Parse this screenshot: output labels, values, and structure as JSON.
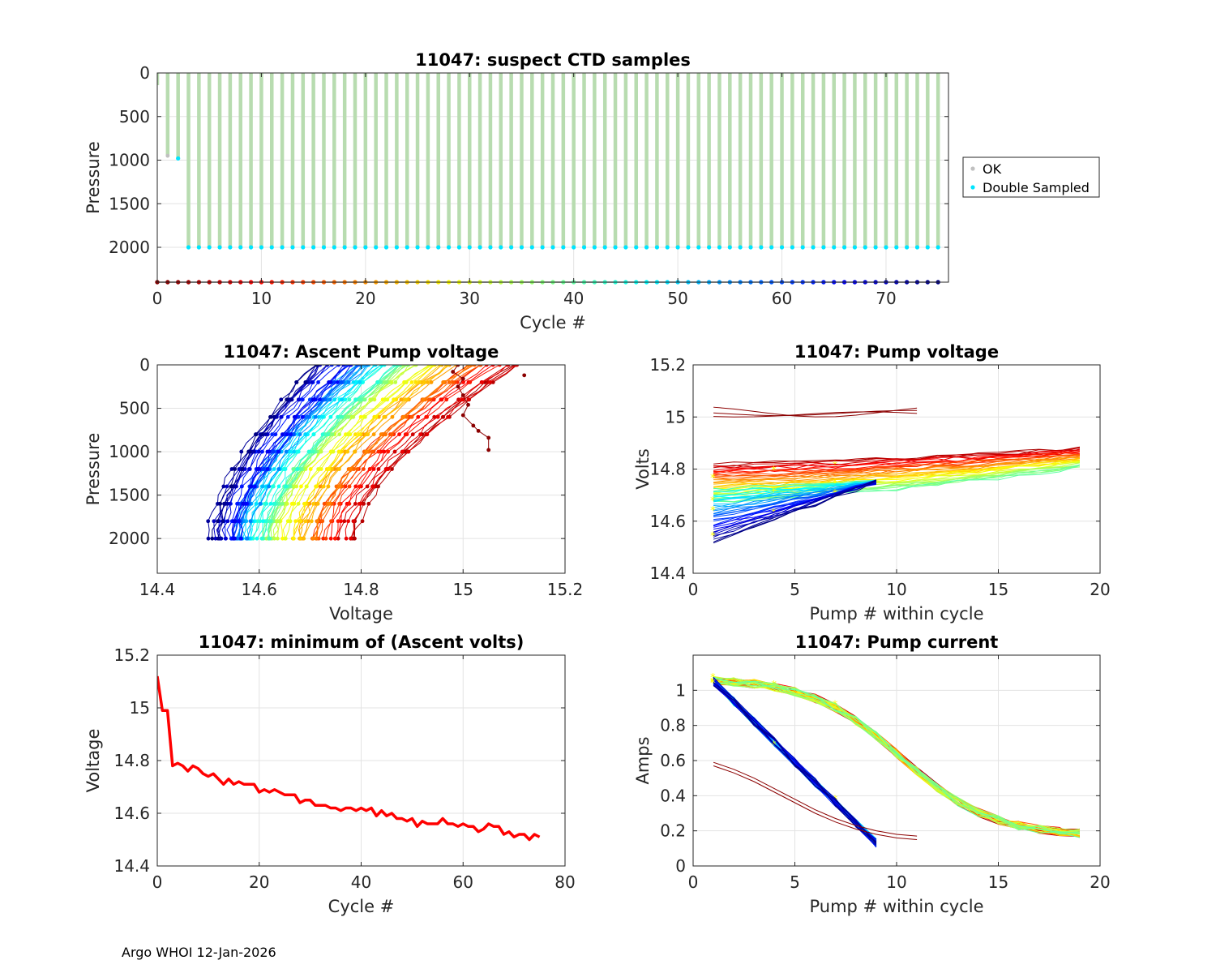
{
  "footer": "Argo WHOI 12-Jan-2026",
  "chart_data": [
    {
      "id": "suspect",
      "type": "scatter",
      "title": "11047: suspect CTD samples",
      "xlabel": "Cycle #",
      "ylabel": "Pressure",
      "xlim": [
        0,
        76
      ],
      "ylim": [
        0,
        2400
      ],
      "y_reversed": true,
      "xticks": [
        0,
        10,
        20,
        30,
        40,
        50,
        60,
        70
      ],
      "yticks": [
        0,
        500,
        1000,
        1500,
        2000
      ],
      "grid": true,
      "legend": {
        "position": "outside-right",
        "entries": [
          {
            "label": "OK",
            "color": "#c0c0c0"
          },
          {
            "label": "Double Sampled",
            "color": "#00e5ff"
          }
        ]
      },
      "profiles": [
        {
          "cycle": 0,
          "max_pressure": 140
        },
        {
          "cycle": 1,
          "max_pressure": 950
        },
        {
          "cycle": 2,
          "max_pressure": 980
        },
        {
          "cycle_range": [
            3,
            75
          ],
          "max_pressure": 2000
        }
      ],
      "double_sampled_pressure": 2000,
      "double_sampled_cycles_from": 3,
      "cycle_marker_pressure": 2400,
      "sample_color": "#b8dcb0"
    },
    {
      "id": "ascent",
      "type": "line",
      "title": "11047: Ascent Pump voltage",
      "xlabel": "Voltage",
      "ylabel": "Pressure",
      "xlim": [
        14.4,
        15.2
      ],
      "ylim": [
        0,
        2400
      ],
      "y_reversed": true,
      "xticks": [
        14.4,
        14.6,
        14.8,
        15,
        15.2
      ],
      "ytick_values": [
        0,
        500,
        1000,
        1500,
        2000
      ],
      "grid": true,
      "n_cycles": 76,
      "pressure_levels": [
        0,
        100,
        200,
        300,
        400,
        500,
        600,
        700,
        800,
        900,
        1000,
        1100,
        1200,
        1300,
        1400,
        1500,
        1600,
        1700,
        1800,
        1900,
        2000
      ],
      "early_profile": {
        "voltages": [
          14.99,
          14.98,
          15.0,
          14.99,
          15.0,
          15.01,
          15.0,
          15.02,
          15.03,
          15.05,
          15.05
        ],
        "pressures": [
          0,
          80,
          160,
          250,
          350,
          460,
          580,
          700,
          760,
          840,
          980
        ]
      },
      "outlier_point": {
        "voltage": 15.12,
        "pressure": 120
      }
    },
    {
      "id": "pumpv",
      "type": "line",
      "title": "11047: Pump voltage",
      "xlabel": "Pump # within cycle",
      "ylabel": "Volts",
      "xlim": [
        0,
        20
      ],
      "ylim": [
        14.4,
        15.2
      ],
      "xticks": [
        0,
        5,
        10,
        15,
        20
      ],
      "yticks": [
        14.4,
        14.6,
        14.8,
        15,
        15.2
      ],
      "grid": true,
      "early_level": 15.02,
      "early_pumps": 11
    },
    {
      "id": "minvolt",
      "type": "line",
      "title": "11047: minimum of (Ascent volts)",
      "xlabel": "Cycle #",
      "ylabel": "Voltage",
      "xlim": [
        0,
        80
      ],
      "ylim": [
        14.4,
        15.2
      ],
      "xticks": [
        0,
        20,
        40,
        60,
        80
      ],
      "yticks": [
        14.4,
        14.6,
        14.8,
        15,
        15.2
      ],
      "grid": true,
      "line_color": "#ff0000",
      "x": [
        0,
        1,
        2,
        3,
        4,
        5,
        6,
        7,
        8,
        9,
        10,
        11,
        12,
        13,
        14,
        15,
        16,
        17,
        18,
        19,
        20,
        21,
        22,
        23,
        24,
        25,
        26,
        27,
        28,
        29,
        30,
        31,
        32,
        33,
        34,
        35,
        36,
        37,
        38,
        39,
        40,
        41,
        42,
        43,
        44,
        45,
        46,
        47,
        48,
        49,
        50,
        51,
        52,
        53,
        54,
        55,
        56,
        57,
        58,
        59,
        60,
        61,
        62,
        63,
        64,
        65,
        66,
        67,
        68,
        69,
        70,
        71,
        72,
        73,
        74,
        75
      ],
      "y": [
        15.12,
        14.99,
        14.99,
        14.78,
        14.79,
        14.78,
        14.76,
        14.78,
        14.77,
        14.75,
        14.74,
        14.75,
        14.73,
        14.71,
        14.73,
        14.71,
        14.72,
        14.71,
        14.71,
        14.71,
        14.68,
        14.69,
        14.68,
        14.69,
        14.68,
        14.67,
        14.67,
        14.67,
        14.64,
        14.65,
        14.65,
        14.63,
        14.63,
        14.63,
        14.62,
        14.62,
        14.61,
        14.62,
        14.62,
        14.61,
        14.62,
        14.61,
        14.62,
        14.59,
        14.61,
        14.59,
        14.6,
        14.58,
        14.58,
        14.57,
        14.58,
        14.55,
        14.57,
        14.56,
        14.56,
        14.56,
        14.58,
        14.56,
        14.56,
        14.55,
        14.56,
        14.55,
        14.55,
        14.53,
        14.54,
        14.56,
        14.55,
        14.55,
        14.52,
        14.53,
        14.51,
        14.52,
        14.52,
        14.5,
        14.52,
        14.51
      ]
    },
    {
      "id": "pumpc",
      "type": "line",
      "title": "11047: Pump current",
      "xlabel": "Pump # within cycle",
      "ylabel": "Amps",
      "xlim": [
        0,
        20
      ],
      "ylim": [
        0,
        1.2
      ],
      "xticks": [
        0,
        5,
        10,
        15,
        20
      ],
      "yticks": [
        0,
        0.2,
        0.4,
        0.6,
        0.8,
        1
      ],
      "grid": true,
      "early_curve": {
        "x": [
          1,
          2,
          3,
          4,
          5,
          6,
          7,
          8,
          9,
          10,
          11
        ],
        "y": [
          0.59,
          0.55,
          0.5,
          0.44,
          0.38,
          0.32,
          0.27,
          0.23,
          0.2,
          0.18,
          0.17
        ]
      }
    }
  ]
}
